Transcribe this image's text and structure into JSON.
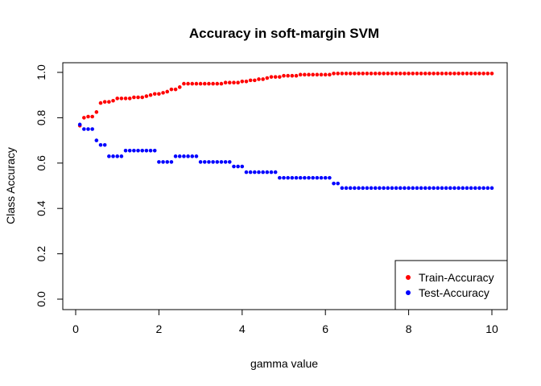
{
  "chart_data": {
    "type": "scatter",
    "title": "Accuracy in soft-margin SVM",
    "xlabel": "gamma value",
    "ylabel": "Class Accuracy",
    "xlim": [
      0.1,
      10
    ],
    "ylim": [
      0,
      1
    ],
    "xticks": [
      "0",
      "2",
      "4",
      "6",
      "8",
      "10"
    ],
    "yticks": [
      "0.0",
      "0.2",
      "0.4",
      "0.6",
      "0.8",
      "1.0"
    ],
    "grid": false,
    "legend_position": "bottom-right",
    "series": [
      {
        "name": "Train-Accuracy",
        "color": "#FF0000",
        "x": [
          0.1,
          0.2,
          0.3,
          0.4,
          0.5,
          0.6,
          0.7,
          0.8,
          0.9,
          1,
          1.1,
          1.2,
          1.3,
          1.4,
          1.5,
          1.6,
          1.7,
          1.8,
          1.9,
          2,
          2.1,
          2.2,
          2.3,
          2.4,
          2.5,
          2.6,
          2.7,
          2.8,
          2.9,
          3,
          3.1,
          3.2,
          3.3,
          3.4,
          3.5,
          3.6,
          3.7,
          3.8,
          3.9,
          4,
          4.1,
          4.2,
          4.3,
          4.4,
          4.5,
          4.6,
          4.7,
          4.8,
          4.9,
          5,
          5.1,
          5.2,
          5.3,
          5.4,
          5.5,
          5.6,
          5.7,
          5.8,
          5.9,
          6,
          6.1,
          6.2,
          6.3,
          6.4,
          6.5,
          6.6,
          6.7,
          6.8,
          6.9,
          7,
          7.1,
          7.2,
          7.3,
          7.4,
          7.5,
          7.6,
          7.7,
          7.8,
          7.9,
          8,
          8.1,
          8.2,
          8.3,
          8.4,
          8.5,
          8.6,
          8.7,
          8.8,
          8.9,
          9,
          9.1,
          9.2,
          9.3,
          9.4,
          9.5,
          9.6,
          9.7,
          9.8,
          9.9,
          10
        ],
        "y": [
          0.765,
          0.8,
          0.805,
          0.805,
          0.825,
          0.865,
          0.87,
          0.87,
          0.875,
          0.885,
          0.885,
          0.885,
          0.885,
          0.89,
          0.89,
          0.89,
          0.895,
          0.9,
          0.905,
          0.905,
          0.91,
          0.915,
          0.925,
          0.925,
          0.935,
          0.95,
          0.95,
          0.95,
          0.95,
          0.95,
          0.95,
          0.95,
          0.95,
          0.95,
          0.95,
          0.955,
          0.955,
          0.955,
          0.955,
          0.96,
          0.96,
          0.965,
          0.965,
          0.97,
          0.97,
          0.975,
          0.98,
          0.98,
          0.98,
          0.985,
          0.985,
          0.985,
          0.985,
          0.99,
          0.99,
          0.99,
          0.99,
          0.99,
          0.99,
          0.99,
          0.99,
          0.995,
          0.995,
          0.995,
          0.995,
          0.995,
          0.995,
          0.995,
          0.995,
          0.995,
          0.995,
          0.995,
          0.995,
          0.995,
          0.995,
          0.995,
          0.995,
          0.995,
          0.995,
          0.995,
          0.995,
          0.995,
          0.995,
          0.995,
          0.995,
          0.995,
          0.995,
          0.995,
          0.995,
          0.995,
          0.995,
          0.995,
          0.995,
          0.995,
          0.995,
          0.995,
          0.995,
          0.995,
          0.995,
          0.995
        ]
      },
      {
        "name": "Test-Accuracy",
        "color": "#0000FF",
        "x": [
          0.1,
          0.2,
          0.3,
          0.4,
          0.5,
          0.6,
          0.7,
          0.8,
          0.9,
          1,
          1.1,
          1.2,
          1.3,
          1.4,
          1.5,
          1.6,
          1.7,
          1.8,
          1.9,
          2,
          2.1,
          2.2,
          2.3,
          2.4,
          2.5,
          2.6,
          2.7,
          2.8,
          2.9,
          3,
          3.1,
          3.2,
          3.3,
          3.4,
          3.5,
          3.6,
          3.7,
          3.8,
          3.9,
          4,
          4.1,
          4.2,
          4.3,
          4.4,
          4.5,
          4.6,
          4.7,
          4.8,
          4.9,
          5,
          5.1,
          5.2,
          5.3,
          5.4,
          5.5,
          5.6,
          5.7,
          5.8,
          5.9,
          6,
          6.1,
          6.2,
          6.3,
          6.4,
          6.5,
          6.6,
          6.7,
          6.8,
          6.9,
          7,
          7.1,
          7.2,
          7.3,
          7.4,
          7.5,
          7.6,
          7.7,
          7.8,
          7.9,
          8,
          8.1,
          8.2,
          8.3,
          8.4,
          8.5,
          8.6,
          8.7,
          8.8,
          8.9,
          9,
          9.1,
          9.2,
          9.3,
          9.4,
          9.5,
          9.6,
          9.7,
          9.8,
          9.9,
          10
        ],
        "y": [
          0.77,
          0.75,
          0.75,
          0.75,
          0.7,
          0.68,
          0.68,
          0.63,
          0.63,
          0.63,
          0.63,
          0.655,
          0.655,
          0.655,
          0.655,
          0.655,
          0.655,
          0.655,
          0.655,
          0.605,
          0.605,
          0.605,
          0.605,
          0.63,
          0.63,
          0.63,
          0.63,
          0.63,
          0.63,
          0.605,
          0.605,
          0.605,
          0.605,
          0.605,
          0.605,
          0.605,
          0.605,
          0.585,
          0.585,
          0.585,
          0.56,
          0.56,
          0.56,
          0.56,
          0.56,
          0.56,
          0.56,
          0.56,
          0.535,
          0.535,
          0.535,
          0.535,
          0.535,
          0.535,
          0.535,
          0.535,
          0.535,
          0.535,
          0.535,
          0.535,
          0.535,
          0.51,
          0.51,
          0.49,
          0.49,
          0.49,
          0.49,
          0.49,
          0.49,
          0.49,
          0.49,
          0.49,
          0.49,
          0.49,
          0.49,
          0.49,
          0.49,
          0.49,
          0.49,
          0.49,
          0.49,
          0.49,
          0.49,
          0.49,
          0.49,
          0.49,
          0.49,
          0.49,
          0.49,
          0.49,
          0.49,
          0.49,
          0.49,
          0.49,
          0.49,
          0.49,
          0.49,
          0.49,
          0.49,
          0.49
        ]
      }
    ]
  }
}
